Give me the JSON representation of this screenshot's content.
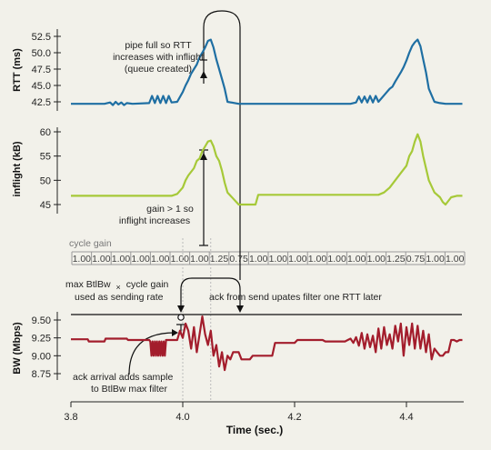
{
  "chart_data": [
    {
      "type": "line",
      "ylabel": "RTT (ms)",
      "yticks": [
        "52.5",
        "50.0",
        "47.5",
        "45.0",
        "42.5"
      ],
      "ylim": [
        42.5,
        52.5
      ],
      "color": "#1f6fa3",
      "series": [
        {
          "x": [
            3.8,
            3.86,
            3.87,
            3.875,
            3.88,
            3.885,
            3.89,
            3.895,
            3.9,
            3.91,
            3.94,
            3.945,
            3.95,
            3.955,
            3.96,
            3.965,
            3.97,
            3.975,
            3.98,
            3.99,
            4.0,
            4.005,
            4.01,
            4.015,
            4.02,
            4.025,
            4.03,
            4.035,
            4.04,
            4.045,
            4.05,
            4.055,
            4.06,
            4.07,
            4.075,
            4.08,
            4.1,
            4.3,
            4.31,
            4.315,
            4.32,
            4.325,
            4.33,
            4.335,
            4.34,
            4.345,
            4.35,
            4.36,
            4.365,
            4.37,
            4.375,
            4.38,
            4.385,
            4.39,
            4.395,
            4.4,
            4.405,
            4.41,
            4.415,
            4.42,
            4.425,
            4.43,
            4.435,
            4.44,
            4.45,
            4.46,
            4.47,
            4.5
          ],
          "y": [
            42.2,
            42.2,
            42.4,
            42.0,
            42.5,
            42.1,
            42.4,
            42.0,
            42.3,
            42.2,
            42.3,
            43.4,
            42.3,
            43.4,
            42.3,
            43.4,
            42.3,
            43.4,
            42.4,
            42.5,
            44.0,
            45.0,
            45.8,
            46.8,
            47.5,
            48.2,
            49.3,
            50.0,
            50.8,
            51.8,
            52.0,
            50.8,
            49.0,
            46.0,
            44.5,
            42.5,
            42.2,
            42.2,
            42.4,
            43.3,
            42.4,
            43.3,
            42.4,
            43.4,
            42.4,
            43.4,
            42.5,
            43.5,
            44.0,
            44.5,
            44.8,
            45.6,
            46.3,
            47.0,
            47.8,
            48.8,
            50.0,
            51.0,
            51.6,
            52.0,
            51.0,
            49.0,
            47.0,
            44.5,
            42.5,
            42.3,
            42.2,
            42.2
          ]
        }
      ]
    },
    {
      "type": "line",
      "ylabel": "inflight (kB)",
      "yticks": [
        "60",
        "55",
        "50",
        "45"
      ],
      "ylim": [
        45,
        60
      ],
      "color": "#a6c938",
      "series": [
        {
          "x": [
            3.8,
            3.98,
            3.99,
            4.0,
            4.005,
            4.01,
            4.02,
            4.025,
            4.03,
            4.035,
            4.04,
            4.045,
            4.05,
            4.055,
            4.06,
            4.065,
            4.07,
            4.075,
            4.08,
            4.1,
            4.13,
            4.135,
            4.35,
            4.36,
            4.37,
            4.38,
            4.39,
            4.4,
            4.405,
            4.41,
            4.415,
            4.42,
            4.425,
            4.43,
            4.435,
            4.44,
            4.45,
            4.46,
            4.465,
            4.47,
            4.48,
            4.49,
            4.5
          ],
          "y": [
            46.8,
            46.8,
            47.2,
            48.5,
            50.0,
            51.0,
            52.5,
            54.0,
            54.5,
            56.0,
            57.0,
            58.0,
            58.2,
            57.0,
            55.0,
            54.0,
            52.0,
            49.5,
            47.5,
            45.0,
            45.0,
            47.0,
            47.0,
            47.5,
            48.5,
            50.0,
            51.5,
            53.0,
            55.0,
            56.0,
            58.0,
            59.5,
            58.0,
            55.0,
            52.5,
            50.0,
            47.5,
            46.5,
            45.5,
            45.0,
            46.5,
            46.8,
            46.8
          ]
        }
      ]
    },
    {
      "type": "line",
      "ylabel": "BW (Mbps)",
      "yticks": [
        "9.50",
        "9.25",
        "9.00",
        "8.75"
      ],
      "ylim": [
        8.75,
        9.5
      ],
      "color": "#a31d2c",
      "series": [
        {
          "x": [
            3.8,
            3.83,
            3.832,
            3.86,
            3.862,
            3.9,
            3.902,
            3.94,
            3.942,
            3.944,
            3.946,
            3.948,
            3.95,
            3.952,
            3.954,
            3.956,
            3.958,
            3.96,
            3.962,
            3.964,
            3.966,
            3.968,
            3.97,
            3.99,
            3.995,
            4.0,
            4.005,
            4.01,
            4.015,
            4.02,
            4.025,
            4.03,
            4.035,
            4.04,
            4.045,
            4.05,
            4.055,
            4.06,
            4.065,
            4.07,
            4.075,
            4.08,
            4.085,
            4.09,
            4.1,
            4.105,
            4.12,
            4.125,
            4.16,
            4.165,
            4.2,
            4.205,
            4.25,
            4.255,
            4.29,
            4.3,
            4.305,
            4.31,
            4.315,
            4.32,
            4.325,
            4.33,
            4.335,
            4.34,
            4.345,
            4.35,
            4.355,
            4.36,
            4.365,
            4.37,
            4.375,
            4.38,
            4.385,
            4.39,
            4.395,
            4.4,
            4.405,
            4.41,
            4.415,
            4.42,
            4.425,
            4.43,
            4.435,
            4.44,
            4.445,
            4.45,
            4.455,
            4.46,
            4.465,
            4.47,
            4.475,
            4.48,
            4.485,
            4.49,
            4.495,
            4.5
          ],
          "y": [
            9.23,
            9.23,
            9.2,
            9.2,
            9.24,
            9.24,
            9.22,
            9.22,
            9.2,
            9.0,
            9.2,
            9.0,
            9.2,
            9.0,
            9.2,
            9.0,
            9.2,
            9.0,
            9.2,
            9.0,
            9.2,
            9.0,
            9.22,
            9.22,
            9.35,
            9.25,
            9.45,
            9.35,
            9.1,
            9.4,
            9.05,
            9.3,
            9.55,
            9.3,
            9.15,
            9.35,
            9.0,
            9.15,
            8.85,
            9.05,
            8.8,
            9.0,
            8.95,
            9.05,
            9.05,
            8.95,
            8.95,
            9.0,
            9.0,
            9.18,
            9.18,
            9.22,
            9.22,
            9.2,
            9.2,
            9.24,
            9.18,
            9.26,
            9.14,
            9.32,
            9.1,
            9.3,
            9.12,
            9.28,
            9.05,
            9.38,
            9.1,
            9.4,
            9.15,
            9.3,
            9.1,
            9.42,
            9.2,
            9.45,
            9.0,
            9.4,
            9.15,
            9.45,
            9.1,
            9.42,
            9.1,
            9.35,
            9.05,
            9.3,
            8.95,
            9.1,
            9.05,
            9.0,
            9.0,
            9.05,
            9.05,
            9.22,
            9.22,
            9.2,
            9.22,
            9.22
          ]
        }
      ]
    }
  ],
  "xaxis": {
    "label": "Time (sec.)",
    "ticks": [
      3.8,
      4.0,
      4.2,
      4.4
    ],
    "tick_labels": [
      "3.8",
      "4.0",
      "4.2",
      "4.4"
    ],
    "xlim": [
      3.8,
      4.5
    ]
  },
  "cycle_gain": {
    "title": "cycle gain",
    "values": [
      "1.00",
      "1.00",
      "1.00",
      "1.00",
      "1.00",
      "1.00",
      "1.00",
      "1.25",
      "0.75",
      "1.00",
      "1.00",
      "1.00",
      "1.00",
      "1.00",
      "1.00",
      "1.00",
      "1.25",
      "0.75",
      "1.00",
      "1.00"
    ]
  },
  "annotations": {
    "pipe_full": [
      "pipe full so RTT",
      "increases with inflight",
      "(queue created)"
    ],
    "gain_gt1": [
      "gain > 1 so",
      "inflight increases"
    ],
    "max_btlbw": [
      "max BtlBw",
      "×",
      "cycle gain",
      "used as sending rate"
    ],
    "ack_update": "ack from send upates filter one RTT later",
    "ack_arrival": [
      "ack arrival adds sample",
      "to BtlBw max filter"
    ]
  },
  "colors": {
    "rtt": "#1f6fa3",
    "inflight": "#a6c938",
    "bw": "#a31d2c",
    "background": "#f2f1ea"
  }
}
